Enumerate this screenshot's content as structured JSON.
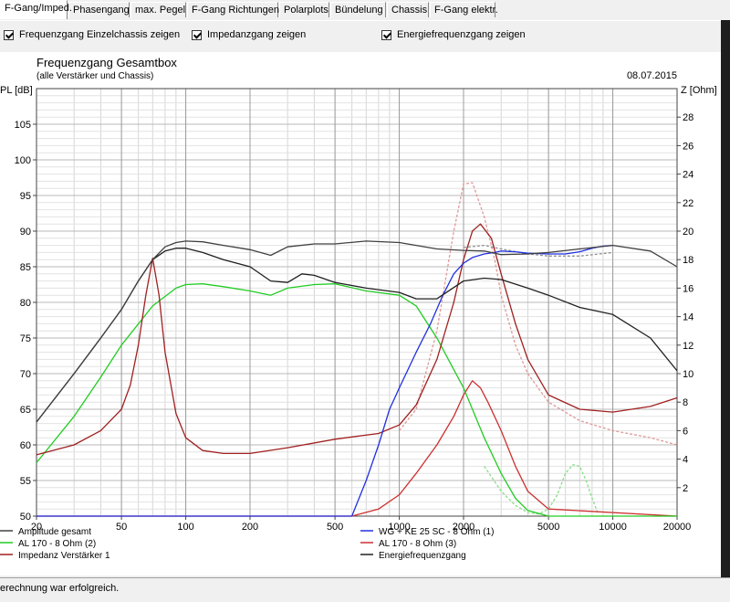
{
  "tabs": [
    {
      "label": "F-Gang/Imped.",
      "active": true
    },
    {
      "label": "Phasengang"
    },
    {
      "label": "max. Pegel"
    },
    {
      "label": "F-Gang Richtungen"
    },
    {
      "label": "Polarplots"
    },
    {
      "label": "Bündelung"
    },
    {
      "label": "Chassis"
    },
    {
      "label": "F-Gang elektr."
    }
  ],
  "options": [
    {
      "label": "Frequenzgang Einzelchassis zeigen",
      "checked": true
    },
    {
      "label": "Impedanzgang zeigen",
      "checked": true
    },
    {
      "label": "Energiefrequenzgang zeigen",
      "checked": true
    }
  ],
  "status_text": "erechnung war erfolgreich.",
  "chart_data": {
    "type": "line",
    "title": "Frequenzgang Gesamtbox",
    "subtitle": "(alle Verstärker und Chassis)",
    "date": "08.07.2015",
    "ylabel_left": "PL [dB]",
    "ylabel_right": "Z [Ohm]",
    "x_scale": "log",
    "xlim": [
      20,
      20000
    ],
    "ylim_left": [
      50,
      110
    ],
    "ylim_right": [
      0,
      30
    ],
    "x_ticks": [
      20,
      50,
      100,
      200,
      500,
      1000,
      2000,
      5000,
      10000,
      20000
    ],
    "x_tick_labels": [
      "20",
      "50",
      "100",
      "200",
      "500",
      "1000",
      "2000",
      "5000",
      "10000",
      "20000"
    ],
    "y_ticks_left": [
      50,
      55,
      60,
      65,
      70,
      75,
      80,
      85,
      90,
      95,
      100,
      105
    ],
    "y_ticks_right": [
      2,
      4,
      6,
      8,
      10,
      12,
      14,
      16,
      18,
      20,
      22,
      24,
      26,
      28
    ],
    "grid": true,
    "legend_position": "bottom",
    "series": [
      {
        "name": "Amplitude gesamt",
        "color": "#404040",
        "axis": "left",
        "x": [
          20,
          30,
          40,
          50,
          60,
          70,
          80,
          90,
          100,
          120,
          150,
          200,
          250,
          300,
          400,
          500,
          700,
          1000,
          1500,
          2000,
          2500,
          3000,
          4000,
          5000,
          7000,
          10000,
          15000,
          20000
        ],
        "y": [
          63.2,
          70,
          75,
          79,
          83,
          86,
          87.8,
          88.4,
          88.6,
          88.5,
          88,
          87.4,
          86.6,
          87.8,
          88.2,
          88.2,
          88.6,
          88.4,
          87.5,
          87.3,
          87.2,
          86.7,
          86.8,
          87,
          87.5,
          88,
          87.2,
          85
        ]
      },
      {
        "name": "WG + KE 25 SC - 8 Ohm (1)",
        "color": "#2030e0",
        "axis": "left",
        "x": [
          20,
          600,
          700,
          800,
          900,
          1000,
          1200,
          1400,
          1600,
          1800,
          2000,
          2200,
          2500,
          2800,
          3000,
          3500,
          4000,
          5000,
          6000,
          7000,
          8000,
          9000,
          10000
        ],
        "y": [
          50,
          50,
          55,
          60,
          65,
          68,
          73,
          77,
          81,
          84,
          85.5,
          86.3,
          86.8,
          87,
          87.2,
          87.1,
          86.9,
          86.8,
          86.8,
          87.1,
          87.6,
          87.9,
          88
        ]
      },
      {
        "name": "AL 170 - 8 Ohm (2)",
        "color": "#22cc22",
        "axis": "left",
        "x": [
          20,
          30,
          40,
          50,
          70,
          90,
          100,
          120,
          150,
          200,
          250,
          300,
          400,
          500,
          700,
          1000,
          1200,
          1500,
          2000,
          2500,
          3000,
          3500,
          4000,
          5000,
          20000
        ],
        "y": [
          57.5,
          64,
          69.5,
          74,
          79.5,
          82,
          82.5,
          82.6,
          82.2,
          81.6,
          81,
          82,
          82.5,
          82.6,
          81.6,
          81,
          79.5,
          75,
          68,
          61,
          56,
          52.5,
          50.8,
          50,
          50
        ]
      },
      {
        "name": "AL 170 - 8 Ohm (3)",
        "color": "#cc3030",
        "axis": "left",
        "x": [
          20,
          600,
          800,
          1000,
          1200,
          1500,
          1800,
          2000,
          2200,
          2400,
          2600,
          3000,
          3500,
          4000,
          5000,
          20000
        ],
        "y": [
          50,
          50,
          51,
          53,
          56,
          60,
          64,
          67,
          69,
          68,
          66,
          62,
          57,
          53.5,
          51,
          50
        ]
      },
      {
        "name": "Impedanz Verstärker 1",
        "color": "#a02020",
        "axis": "right",
        "x": [
          20,
          30,
          40,
          50,
          55,
          60,
          65,
          70,
          75,
          80,
          90,
          100,
          120,
          150,
          200,
          300,
          500,
          800,
          1000,
          1200,
          1500,
          1800,
          2000,
          2200,
          2400,
          2700,
          3000,
          3500,
          4000,
          5000,
          7000,
          10000,
          15000,
          20000
        ],
        "y": [
          4.3,
          5,
          6,
          7.5,
          9.2,
          12,
          15.5,
          18.1,
          15.5,
          11.5,
          7.2,
          5.5,
          4.6,
          4.4,
          4.4,
          4.8,
          5.4,
          5.8,
          6.4,
          7.8,
          11,
          15,
          18,
          20,
          20.5,
          19.5,
          17,
          13.5,
          11,
          8.5,
          7.5,
          7.3,
          7.7,
          8.3
        ]
      },
      {
        "name": "Energiefrequenzgang",
        "color": "#202020",
        "axis": "left",
        "x": [
          20,
          30,
          40,
          50,
          60,
          70,
          80,
          90,
          100,
          120,
          150,
          200,
          250,
          300,
          350,
          400,
          500,
          700,
          1000,
          1200,
          1500,
          2000,
          2500,
          3000,
          4000,
          5000,
          7000,
          10000,
          15000,
          20000
        ],
        "y": [
          63.2,
          70,
          75,
          79,
          83,
          86,
          87.2,
          87.6,
          87.6,
          87,
          86,
          85,
          83,
          82.8,
          84,
          83.8,
          82.8,
          82,
          81.4,
          80.5,
          80.5,
          83,
          83.4,
          83.2,
          82,
          81,
          79.3,
          78.3,
          75,
          70.4
        ]
      },
      {
        "name": "",
        "color": "#909090",
        "dash": "3,2",
        "axis": "left",
        "x": [
          2000,
          2500,
          3000,
          4000,
          5000,
          7000,
          10000
        ],
        "y": [
          87.7,
          88,
          87.5,
          86.8,
          86.5,
          86.5,
          87
        ]
      },
      {
        "name": "",
        "color": "#e09898",
        "dash": "3,2",
        "axis": "right",
        "x": [
          1000,
          1200,
          1500,
          1800,
          2000,
          2200,
          2500,
          2800,
          3000,
          3500,
          4000,
          5000,
          7000,
          10000,
          15000,
          20000
        ],
        "y": [
          6,
          7.5,
          13,
          20,
          23.3,
          23.4,
          21,
          18,
          15.5,
          12,
          10,
          8,
          6.7,
          6,
          5.5,
          5
        ]
      },
      {
        "name": "",
        "color": "#88dd88",
        "dash": "3,2",
        "axis": "left",
        "x": [
          2500,
          3000,
          3500,
          4000,
          4500,
          5000,
          5500,
          6000,
          6500,
          7000,
          7500,
          8000,
          8500
        ],
        "y": [
          57,
          53.5,
          51.5,
          50.5,
          50.3,
          51,
          53,
          56,
          57.2,
          57,
          55,
          52.5,
          50.5
        ]
      }
    ]
  }
}
